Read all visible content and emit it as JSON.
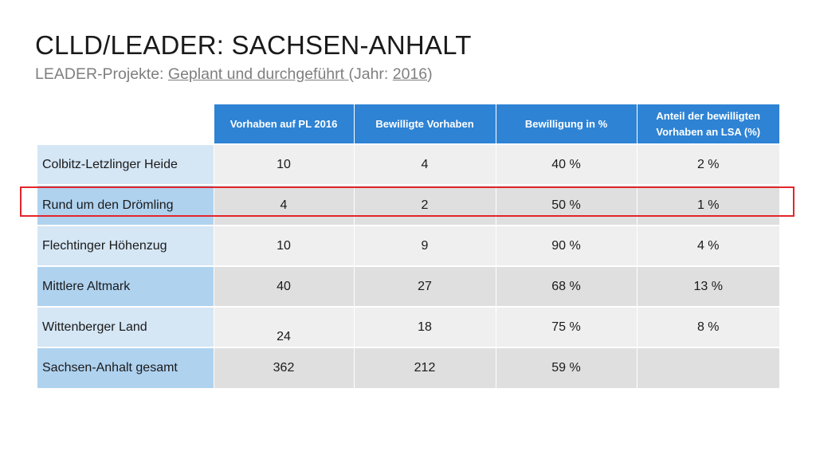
{
  "title": "CLLD/LEADER: SACHSEN-ANHALT",
  "subtitle": {
    "prefix": "LEADER-Projekte: ",
    "link1": "Geplant und durchgeführt ",
    "middle": "(Jahr: ",
    "link2": "2016",
    "suffix": ")"
  },
  "table": {
    "headers": [
      "Vorhaben auf PL 2016",
      "Bewilligte Vorhaben",
      "Bewilligung in %",
      "Anteil der bewilligten Vorhaben an LSA (%)"
    ],
    "rows": [
      {
        "name": "Colbitz-Letzlinger Heide",
        "c1": "10",
        "c2": "4",
        "c3": "40 %",
        "c4": "2 %"
      },
      {
        "name": "Rund um den Drömling",
        "c1": "4",
        "c2": "2",
        "c3": "50 %",
        "c4": "1 %"
      },
      {
        "name": "Flechtinger Höhenzug",
        "c1": "10",
        "c2": "9",
        "c3": "90 %",
        "c4": "4 %"
      },
      {
        "name": "Mittlere Altmark",
        "c1": "40",
        "c2": "27",
        "c3": "68 %",
        "c4": "13 %"
      },
      {
        "name": "Wittenberger Land",
        "c1": "24",
        "c2": "18",
        "c3": "75 %",
        "c4": "8 %"
      },
      {
        "name": "Sachsen-Anhalt gesamt",
        "c1": "362",
        "c2": "212",
        "c3": "59 %",
        "c4": ""
      }
    ]
  },
  "colors": {
    "header_bg": "#2e83d4",
    "highlight_border": "#e2262b",
    "name_cell_light": "#d5e6f5",
    "name_cell_dark": "#afd2ef"
  }
}
